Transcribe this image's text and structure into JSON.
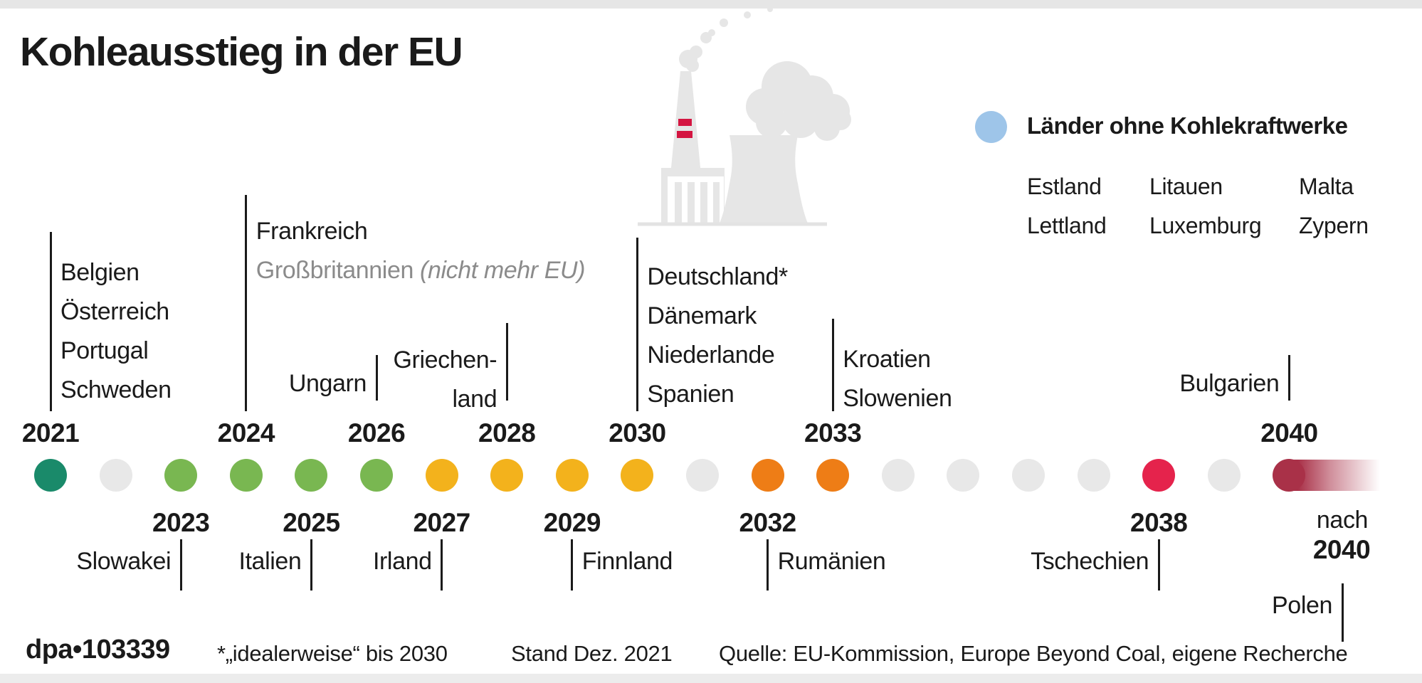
{
  "title": "Kohleausstieg in der EU",
  "legend": {
    "title": "Länder ohne Kohlekraftwerke",
    "dot_color": "#9EC5E9",
    "rows": [
      [
        "Estland",
        "Litauen",
        "Malta"
      ],
      [
        "Lettland",
        "Luxemburg",
        "Zypern"
      ]
    ]
  },
  "chart_data": {
    "type": "timeline",
    "title": "Kohleausstieg in der EU",
    "x_range": [
      2021,
      2040
    ],
    "x_open_end": "nach 2040",
    "entries": [
      {
        "year": 2021,
        "countries": [
          "Belgien",
          "Österreich",
          "Portugal",
          "Schweden"
        ],
        "color": "#1A8A6A"
      },
      {
        "year": 2023,
        "countries": [
          "Slowakei"
        ],
        "color": "#79B751"
      },
      {
        "year": 2024,
        "countries": [
          "Frankreich",
          "Großbritannien (nicht mehr EU)"
        ],
        "color": "#79B751"
      },
      {
        "year": 2025,
        "countries": [
          "Italien"
        ],
        "color": "#79B751"
      },
      {
        "year": 2026,
        "countries": [
          "Ungarn"
        ],
        "color": "#79B751"
      },
      {
        "year": 2027,
        "countries": [
          "Irland"
        ],
        "color": "#F3B21C"
      },
      {
        "year": 2028,
        "countries": [
          "Griechenland"
        ],
        "color": "#F3B21C"
      },
      {
        "year": 2029,
        "countries": [
          "Finnland"
        ],
        "color": "#F3B21C"
      },
      {
        "year": 2030,
        "countries": [
          "Deutschland*",
          "Dänemark",
          "Niederlande",
          "Spanien"
        ],
        "color": "#F3B21C"
      },
      {
        "year": 2032,
        "countries": [
          "Rumänien"
        ],
        "color": "#EE7D16"
      },
      {
        "year": 2033,
        "countries": [
          "Kroatien",
          "Slowenien"
        ],
        "color": "#EE7D16"
      },
      {
        "year": 2038,
        "countries": [
          "Tschechien"
        ],
        "color": "#E5234C"
      },
      {
        "year": 2040,
        "countries": [
          "Bulgarien"
        ],
        "color": "#A93148"
      },
      {
        "year": "nach 2040",
        "countries": [
          "Polen"
        ],
        "color": "#A93148"
      }
    ],
    "no_coal_countries": [
      "Estland",
      "Lettland",
      "Litauen",
      "Luxemburg",
      "Malta",
      "Zypern"
    ],
    "footnote": "*„idealerweise“ bis 2030",
    "as_of": "Stand Dez. 2021",
    "source": "Quelle: EU-Kommission, Europe Beyond Coal, eigene Recherche"
  },
  "timeline": {
    "dots": [
      {
        "year": 2021,
        "color": "#1A8A6A"
      },
      {
        "year": 2022,
        "color": "#E8E8E8"
      },
      {
        "year": 2023,
        "color": "#79B751"
      },
      {
        "year": 2024,
        "color": "#79B751"
      },
      {
        "year": 2025,
        "color": "#79B751"
      },
      {
        "year": 2026,
        "color": "#79B751"
      },
      {
        "year": 2027,
        "color": "#F3B21C"
      },
      {
        "year": 2028,
        "color": "#F3B21C"
      },
      {
        "year": 2029,
        "color": "#F3B21C"
      },
      {
        "year": 2030,
        "color": "#F3B21C"
      },
      {
        "year": 2031,
        "color": "#E8E8E8"
      },
      {
        "year": 2032,
        "color": "#EE7D16"
      },
      {
        "year": 2033,
        "color": "#EE7D16"
      },
      {
        "year": 2034,
        "color": "#E8E8E8"
      },
      {
        "year": 2035,
        "color": "#E8E8E8"
      },
      {
        "year": 2036,
        "color": "#E8E8E8"
      },
      {
        "year": 2037,
        "color": "#E8E8E8"
      },
      {
        "year": 2038,
        "color": "#E5234C"
      },
      {
        "year": 2039,
        "color": "#E8E8E8"
      },
      {
        "year": 2040,
        "color": "#A93148"
      }
    ],
    "top_year_labels": [
      "2021",
      "2024",
      "2026",
      "2028",
      "2030",
      "2033",
      "2040"
    ],
    "bottom_year_labels": [
      "2023",
      "2025",
      "2027",
      "2029",
      "2032",
      "2038"
    ],
    "after_2040_label": {
      "line1": "nach",
      "line2": "2040"
    }
  },
  "annotations": {
    "top": [
      {
        "year": 2021,
        "side": "left",
        "countries": [
          {
            "text": "Belgien"
          },
          {
            "text": "Österreich"
          },
          {
            "text": "Portugal"
          },
          {
            "text": "Schweden"
          }
        ]
      },
      {
        "year": 2024,
        "side": "left",
        "countries": [
          {
            "text": "Frankreich"
          },
          {
            "text": "Großbritannien",
            "note": "(nicht mehr EU)",
            "muted": true
          }
        ]
      },
      {
        "year": 2026,
        "side": "right",
        "countries": [
          {
            "text": "Ungarn"
          }
        ]
      },
      {
        "year": 2028,
        "side": "right",
        "countries": [
          {
            "text": "Griechen-"
          },
          {
            "text": "land"
          }
        ]
      },
      {
        "year": 2030,
        "side": "left",
        "countries": [
          {
            "text": "Deutschland*"
          },
          {
            "text": "Dänemark"
          },
          {
            "text": "Niederlande"
          },
          {
            "text": "Spanien"
          }
        ]
      },
      {
        "year": 2033,
        "side": "left",
        "countries": [
          {
            "text": "Kroatien"
          },
          {
            "text": "Slowenien"
          }
        ]
      },
      {
        "year": 2040,
        "side": "right",
        "countries": [
          {
            "text": "Bulgarien"
          }
        ]
      }
    ],
    "bottom": [
      {
        "year": 2023,
        "label": "Slowakei",
        "label_side": "left"
      },
      {
        "year": 2025,
        "label": "Italien",
        "label_side": "left"
      },
      {
        "year": 2027,
        "label": "Irland",
        "label_side": "left"
      },
      {
        "year": 2029,
        "label": "Finnland",
        "label_side": "right"
      },
      {
        "year": 2032,
        "label": "Rumänien",
        "label_side": "right"
      },
      {
        "year": 2038,
        "label": "Tschechien",
        "label_side": "left"
      },
      {
        "year": "after_2040",
        "label": "Polen",
        "label_side": "left"
      }
    ]
  },
  "footer": {
    "credit": "dpa•103339",
    "footnote": "*„idealerweise“ bis 2030",
    "stand": "Stand Dez. 2021",
    "source": "Quelle: EU-Kommission, Europe Beyond Coal, eigene Recherche"
  }
}
